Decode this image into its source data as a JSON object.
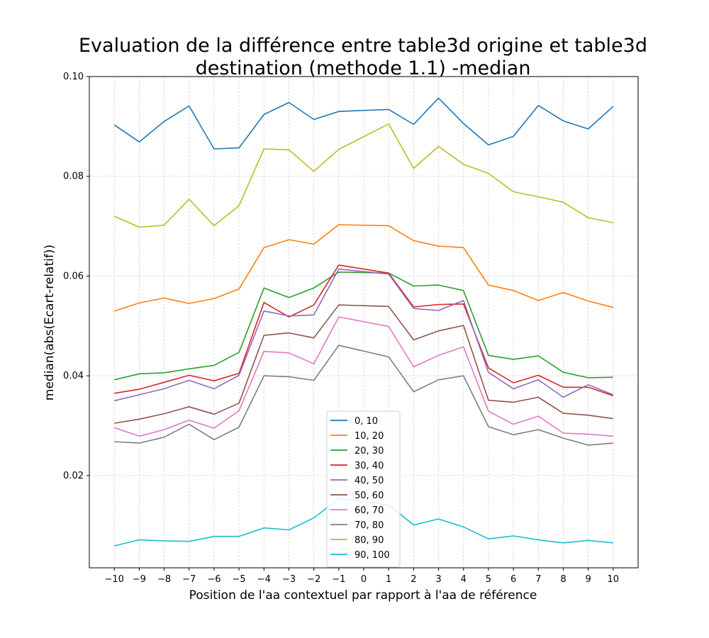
{
  "chart_data": {
    "type": "line",
    "title_line1": "Evaluation de la différence entre table3d origine et table3d",
    "title_line2": "destination (methode 1.1) -median",
    "xlabel": "Position de l'aa contextuel par rapport à l'aa de référence",
    "ylabel": "median(abs(Ecart-relatif))",
    "xlim": [
      -11,
      11
    ],
    "ylim": [
      0.0015,
      0.1
    ],
    "x": [
      -10,
      -9,
      -8,
      -7,
      -6,
      -5,
      -4,
      -3,
      -2,
      -1,
      1,
      2,
      3,
      4,
      5,
      6,
      7,
      8,
      9,
      10
    ],
    "xticks": [
      -10,
      -9,
      -8,
      -7,
      -6,
      -5,
      -4,
      -3,
      -2,
      -1,
      0,
      1,
      2,
      3,
      4,
      5,
      6,
      7,
      8,
      9,
      10
    ],
    "xtick_labels": [
      "−10",
      "−9",
      "−8",
      "−7",
      "−6",
      "−5",
      "−4",
      "−3",
      "−2",
      "−1",
      "0",
      "1",
      "2",
      "3",
      "4",
      "5",
      "6",
      "7",
      "8",
      "9",
      "10"
    ],
    "yticks": [
      0.02,
      0.04,
      0.06,
      0.08,
      0.1
    ],
    "ytick_labels": [
      "0.02",
      "0.04",
      "0.06",
      "0.08",
      "0.10"
    ],
    "grid": true,
    "legend_position": "lower-center",
    "series": [
      {
        "name": "0, 10",
        "color": "#1f77b4",
        "values": [
          0.0903,
          0.0869,
          0.091,
          0.0941,
          0.0855,
          0.0857,
          0.0924,
          0.0948,
          0.0914,
          0.093,
          0.0934,
          0.0904,
          0.0957,
          0.0906,
          0.0863,
          0.088,
          0.0942,
          0.0911,
          0.0895,
          0.094
        ]
      },
      {
        "name": "10, 20",
        "color": "#ff7f0e",
        "values": [
          0.053,
          0.0546,
          0.0556,
          0.0545,
          0.0555,
          0.0574,
          0.0657,
          0.0673,
          0.0664,
          0.0703,
          0.0701,
          0.0671,
          0.066,
          0.0657,
          0.0582,
          0.0571,
          0.0551,
          0.0567,
          0.055,
          0.0537
        ]
      },
      {
        "name": "20, 30",
        "color": "#2ca02c",
        "values": [
          0.0392,
          0.0404,
          0.0406,
          0.0414,
          0.0421,
          0.0447,
          0.0576,
          0.0557,
          0.0576,
          0.0608,
          0.0606,
          0.058,
          0.0582,
          0.0571,
          0.0441,
          0.0433,
          0.044,
          0.0407,
          0.0396,
          0.0397
        ]
      },
      {
        "name": "30, 40",
        "color": "#d62728",
        "values": [
          0.0365,
          0.0373,
          0.0387,
          0.0401,
          0.039,
          0.0405,
          0.0547,
          0.0518,
          0.0542,
          0.0622,
          0.0606,
          0.0538,
          0.0543,
          0.0544,
          0.0416,
          0.0386,
          0.0401,
          0.0377,
          0.0377,
          0.036
        ]
      },
      {
        "name": "40, 50",
        "color": "#9467bd",
        "values": [
          0.035,
          0.0362,
          0.0374,
          0.0391,
          0.0374,
          0.0401,
          0.053,
          0.052,
          0.0522,
          0.0614,
          0.0604,
          0.0535,
          0.0531,
          0.0551,
          0.0407,
          0.0374,
          0.0392,
          0.0357,
          0.0382,
          0.0362
        ]
      },
      {
        "name": "50, 60",
        "color": "#8c564b",
        "values": [
          0.0305,
          0.0313,
          0.0324,
          0.0338,
          0.0323,
          0.0345,
          0.0481,
          0.0486,
          0.0476,
          0.0542,
          0.0539,
          0.0472,
          0.049,
          0.0501,
          0.0351,
          0.0347,
          0.0357,
          0.0325,
          0.0321,
          0.0314
        ]
      },
      {
        "name": "60, 70",
        "color": "#e377c2",
        "values": [
          0.0296,
          0.0279,
          0.0292,
          0.0311,
          0.0295,
          0.033,
          0.0449,
          0.0446,
          0.0424,
          0.0518,
          0.0499,
          0.0418,
          0.0441,
          0.0458,
          0.0329,
          0.0303,
          0.0319,
          0.0285,
          0.0283,
          0.0279
        ]
      },
      {
        "name": "70, 80",
        "color": "#7f7f7f",
        "values": [
          0.0268,
          0.0265,
          0.0277,
          0.0303,
          0.0272,
          0.0297,
          0.04,
          0.0398,
          0.0391,
          0.0461,
          0.0438,
          0.0368,
          0.0392,
          0.04,
          0.0298,
          0.0282,
          0.0292,
          0.0275,
          0.0261,
          0.0265
        ]
      },
      {
        "name": "80, 90",
        "color": "#bcbd22",
        "values": [
          0.072,
          0.0698,
          0.0702,
          0.0754,
          0.0701,
          0.0741,
          0.0855,
          0.0853,
          0.081,
          0.0854,
          0.0905,
          0.0816,
          0.086,
          0.0824,
          0.0806,
          0.0769,
          0.0759,
          0.0748,
          0.0717,
          0.0707
        ]
      },
      {
        "name": "90, 100",
        "color": "#17becf",
        "values": [
          0.0059,
          0.0071,
          0.0069,
          0.0068,
          0.0078,
          0.0078,
          0.0095,
          0.0091,
          0.0115,
          0.0154,
          0.0141,
          0.0101,
          0.0113,
          0.0097,
          0.0073,
          0.0079,
          0.0071,
          0.0065,
          0.007,
          0.0065
        ]
      }
    ]
  }
}
